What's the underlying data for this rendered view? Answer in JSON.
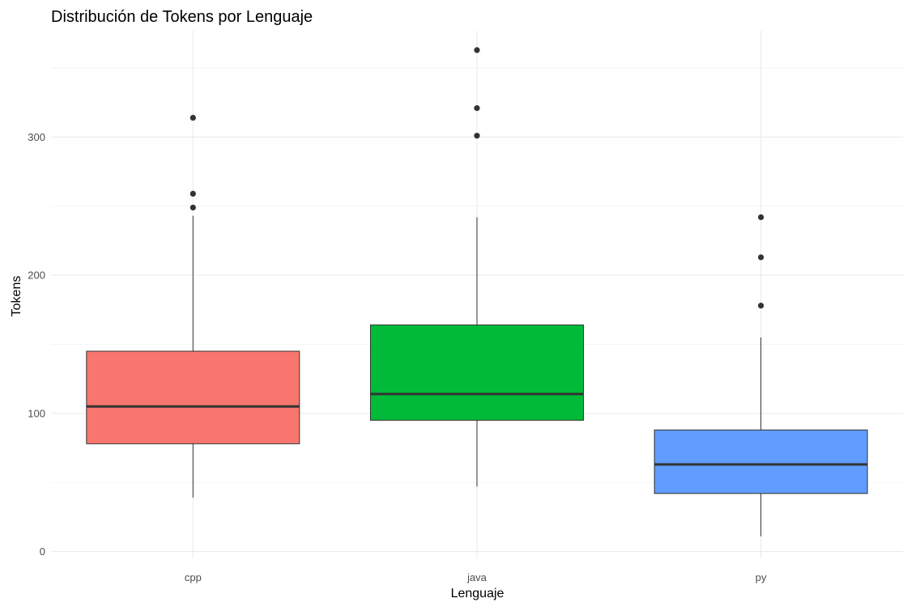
{
  "chart_data": {
    "type": "boxplot",
    "title": "Distribución de Tokens por Lenguaje",
    "xlabel": "Lenguaje",
    "ylabel": "Tokens",
    "ylim": [
      -5,
      377
    ],
    "y_ticks": [
      0,
      100,
      200,
      300
    ],
    "y_minor_ticks": [
      50,
      150,
      250,
      350
    ],
    "grid": true,
    "legend": "none",
    "categories": [
      "cpp",
      "java",
      "py"
    ],
    "boxes": [
      {
        "category": "cpp",
        "color": "#F8766D",
        "whisker_low": 39,
        "q1": 78,
        "median": 105,
        "q3": 145,
        "whisker_high": 243,
        "outliers": [
          249,
          259,
          314
        ]
      },
      {
        "category": "java",
        "color": "#00BA38",
        "whisker_low": 47,
        "q1": 95,
        "median": 114,
        "q3": 164,
        "whisker_high": 242,
        "outliers": [
          301,
          321,
          363
        ]
      },
      {
        "category": "py",
        "color": "#619CFF",
        "whisker_low": 11,
        "q1": 42,
        "median": 63,
        "q3": 88,
        "whisker_high": 155,
        "outliers": [
          178,
          213,
          242
        ]
      }
    ]
  }
}
